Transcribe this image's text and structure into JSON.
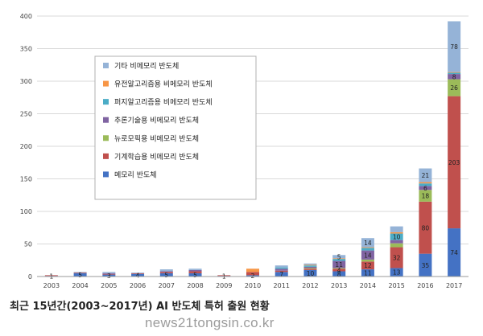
{
  "caption": "최근 15년간(2003~2017년) AI 반도체 특허 출원 현황",
  "watermark": "news21tongsin.co.kr",
  "chart_data": {
    "type": "bar",
    "stacked": true,
    "grid": true,
    "legend_position": "left-middle",
    "ylim": [
      0,
      400
    ],
    "yticks": [
      0,
      50,
      100,
      150,
      200,
      250,
      300,
      350,
      400
    ],
    "categories": [
      "2003",
      "2004",
      "2005",
      "2006",
      "2007",
      "2008",
      "2009",
      "2010",
      "2011",
      "2012",
      "2013",
      "2014",
      "2015",
      "2016",
      "2017"
    ],
    "series": [
      {
        "name": "메모리 반도체",
        "color": "#4472c4",
        "values": [
          1,
          5,
          3,
          4,
          5,
          5,
          1,
          2,
          7,
          10,
          8,
          11,
          13,
          35,
          74
        ],
        "labels": [
          "1",
          "5",
          "3",
          "4",
          "5",
          "5",
          "1",
          "2",
          "7",
          "10",
          "8",
          "11",
          "13",
          "35",
          "74"
        ]
      },
      {
        "name": "기계학습용 비메모리 반도체",
        "color": "#c0504d",
        "values": [
          1,
          1,
          1,
          1,
          2,
          3,
          1,
          5,
          2,
          2,
          4,
          12,
          32,
          80,
          203
        ],
        "labels": [
          "",
          "",
          "",
          "",
          "",
          "",
          "",
          "",
          "",
          "",
          "4",
          "12",
          "32",
          "80",
          "203"
        ]
      },
      {
        "name": "뉴로모픽용 비메모리 반도체",
        "color": "#9bbb59",
        "values": [
          0,
          0,
          0,
          0,
          0,
          0,
          0,
          0,
          0,
          1,
          1,
          3,
          6,
          18,
          26
        ],
        "labels": [
          "",
          "",
          "",
          "",
          "",
          "",
          "",
          "",
          "",
          "",
          "",
          "",
          "",
          "18",
          "26"
        ]
      },
      {
        "name": "추론기술용 비메모리 반도체",
        "color": "#8064a2",
        "values": [
          0,
          0,
          1,
          0,
          1,
          2,
          0,
          0,
          3,
          2,
          11,
          14,
          5,
          6,
          8
        ],
        "labels": [
          "",
          "",
          "",
          "",
          "",
          "",
          "",
          "",
          "",
          "",
          "11",
          "14",
          "",
          "6",
          "8"
        ]
      },
      {
        "name": "퍼지알고리즘용 비메모리 반도체",
        "color": "#4bacc6",
        "values": [
          0,
          0,
          0,
          0,
          0,
          0,
          0,
          0,
          2,
          2,
          3,
          4,
          10,
          4,
          2
        ],
        "labels": [
          "",
          "",
          "",
          "",
          "",
          "",
          "",
          "",
          "",
          "",
          "",
          "",
          "10",
          "",
          ""
        ]
      },
      {
        "name": "유전알고리즘용 비메모리 반도체",
        "color": "#f79646",
        "values": [
          0,
          0,
          0,
          0,
          0,
          0,
          0,
          5,
          0,
          1,
          1,
          1,
          2,
          2,
          1
        ],
        "labels": [
          "",
          "",
          "",
          "",
          "",
          "",
          "",
          "",
          "",
          "",
          "",
          "",
          "",
          "",
          ""
        ]
      },
      {
        "name": "기타 비메모리 반도체",
        "color": "#95b3d7",
        "values": [
          0,
          1,
          2,
          1,
          3,
          2,
          0,
          0,
          3,
          2,
          5,
          14,
          9,
          21,
          78
        ],
        "labels": [
          "",
          "",
          "",
          "",
          "",
          "",
          "",
          "",
          "",
          "",
          "5",
          "14",
          "",
          "21",
          "78"
        ]
      }
    ]
  }
}
